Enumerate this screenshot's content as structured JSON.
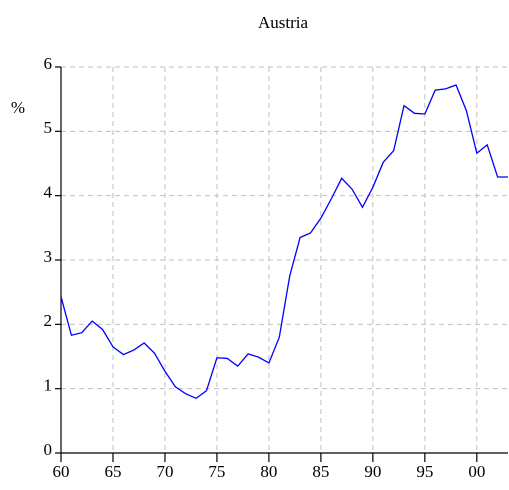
{
  "chart_data": {
    "type": "line",
    "title": "Austria",
    "y_label": "%",
    "x": [
      1960,
      1961,
      1962,
      1963,
      1964,
      1965,
      1966,
      1967,
      1968,
      1969,
      1970,
      1971,
      1972,
      1973,
      1974,
      1975,
      1976,
      1977,
      1978,
      1979,
      1980,
      1981,
      1982,
      1983,
      1984,
      1985,
      1986,
      1987,
      1988,
      1989,
      1990,
      1991,
      1992,
      1993,
      1994,
      1995,
      1996,
      1997,
      1998,
      1999,
      2000,
      2001,
      2002,
      2003
    ],
    "series": [
      {
        "name": "Austria",
        "color": "#0000ff",
        "values": [
          2.43,
          1.83,
          1.87,
          2.05,
          1.92,
          1.65,
          1.53,
          1.6,
          1.71,
          1.55,
          1.27,
          1.03,
          0.92,
          0.85,
          0.97,
          1.48,
          1.47,
          1.35,
          1.54,
          1.49,
          1.4,
          1.8,
          2.75,
          3.35,
          3.42,
          3.65,
          3.95,
          4.27,
          4.1,
          3.82,
          4.13,
          4.52,
          4.7,
          5.4,
          5.28,
          5.27,
          5.64,
          5.66,
          5.72,
          5.32,
          4.66,
          4.79,
          4.29,
          4.29
        ]
      }
    ],
    "xlim": [
      1960,
      2003
    ],
    "xticks": [
      {
        "value": 1960,
        "label": "60"
      },
      {
        "value": 1965,
        "label": "65"
      },
      {
        "value": 1970,
        "label": "70"
      },
      {
        "value": 1975,
        "label": "75"
      },
      {
        "value": 1980,
        "label": "80"
      },
      {
        "value": 1985,
        "label": "85"
      },
      {
        "value": 1990,
        "label": "90"
      },
      {
        "value": 1995,
        "label": "95"
      },
      {
        "value": 2000,
        "label": "00"
      }
    ],
    "ylim": [
      0,
      6
    ],
    "yticks": [
      0,
      1,
      2,
      3,
      4,
      5,
      6
    ],
    "grid": true
  }
}
